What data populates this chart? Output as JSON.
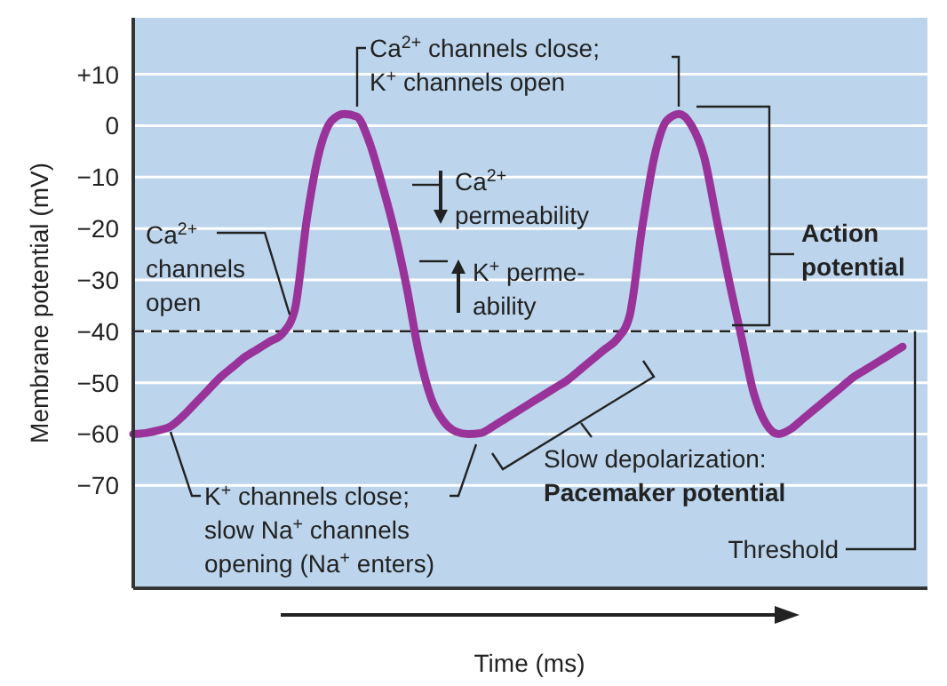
{
  "chart_data": {
    "type": "line",
    "xlabel": "Time (ms)",
    "ylabel": "Membrane potential (mV)",
    "categories": [
      null,
      null,
      null,
      null,
      null,
      null,
      null,
      null,
      null,
      null,
      null,
      null,
      null,
      null,
      null,
      null,
      null,
      null,
      null,
      null,
      null,
      null,
      null,
      null,
      null,
      null,
      null,
      null,
      null,
      null,
      null,
      null,
      null,
      null,
      null,
      null,
      null,
      null,
      null,
      null,
      null,
      null,
      null,
      null,
      null,
      null,
      null,
      null,
      null,
      null,
      null,
      null,
      null,
      null,
      null,
      null,
      null,
      null,
      null,
      null,
      null,
      null,
      null
    ],
    "series": [
      {
        "color": "#993399",
        "values": [
          -60,
          -59.8,
          -59.3,
          -58.5,
          -56.5,
          -54,
          -51.5,
          -49,
          -47,
          -45,
          -43.5,
          -42,
          -40.5,
          -36,
          -18,
          -5,
          1,
          2.3,
          1.8,
          -3,
          -11,
          -20,
          -31,
          -44,
          -53,
          -57.5,
          -59.5,
          -60,
          -59.8,
          -58.5,
          -57,
          -55.5,
          -54,
          -52.5,
          -51,
          -49.5,
          -47.5,
          -45.5,
          -43.5,
          -41.5,
          -37,
          -20,
          -6,
          1,
          2.3,
          0,
          -6,
          -18,
          -30,
          -41,
          -52,
          -58,
          -60,
          -59,
          -57,
          -55,
          -53,
          -51,
          -49,
          -47.5,
          -46,
          -44.5,
          -43
        ]
      }
    ],
    "ylim": [
      -90,
      21
    ],
    "yticks": [
      {
        "value": 10,
        "label": "+10"
      },
      0,
      {
        "value": -10,
        "label": "−10"
      },
      {
        "value": -20,
        "label": "−20"
      },
      {
        "value": -30,
        "label": "−30"
      },
      {
        "value": -40,
        "label": "−40"
      },
      {
        "value": -50,
        "label": "−50"
      },
      {
        "value": -60,
        "label": "−60"
      },
      {
        "value": -70,
        "label": "−70"
      }
    ],
    "grid": "y",
    "marker": "none",
    "line_style": "solid",
    "ref_lines": [
      {
        "axis": "y",
        "value": -40,
        "label": "Threshold",
        "color": "#222222",
        "line_style": "dashed"
      }
    ],
    "annotations": [
      "Ca$^{2+}$ channels close;\nK$^{+}$ channels open",
      "Ca$^{2+}$\npermeability",
      "K$^{+}$ perme-\nability",
      "Ca$^{2+}$\nchannels\nopen",
      "K$^{+}$ channels close;\nslow Na$^{+}$ channels\nopening (Na$^{+}$ enters)",
      "Slow depolarization:\nPacemaker potential",
      "Action\npotential"
    ]
  }
}
